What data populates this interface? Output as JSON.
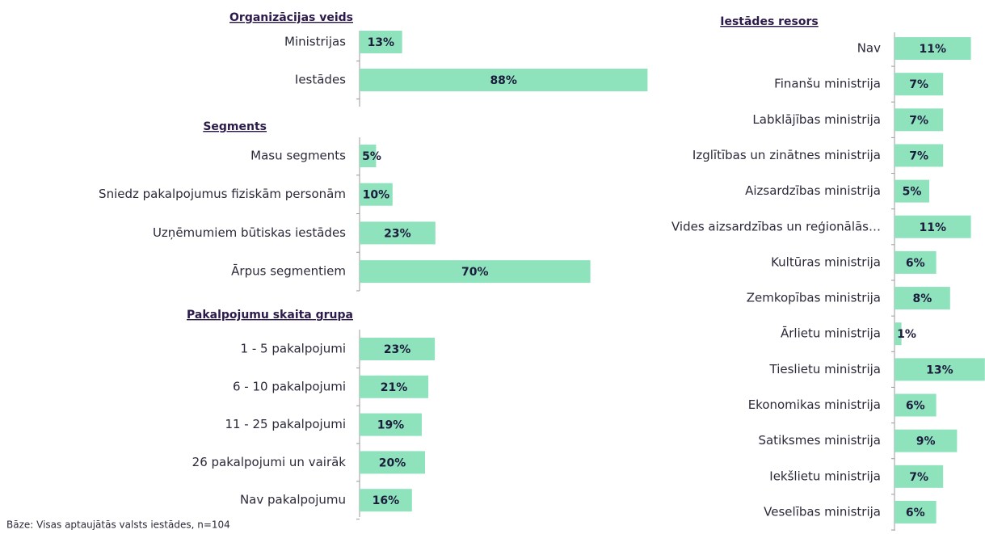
{
  "chart_data": [
    {
      "type": "bar",
      "orientation": "horizontal",
      "title": "Organizācijas veids",
      "color": "#8ee3bd",
      "categories": [
        "Ministrijas",
        "Iestādes"
      ],
      "values": [
        13,
        88
      ],
      "value_labels": [
        "13%",
        "88%"
      ]
    },
    {
      "type": "bar",
      "orientation": "horizontal",
      "title": "Segments",
      "color": "#8ee3bd",
      "categories": [
        "Masu segments",
        "Sniedz pakalpojumus fiziskām personām",
        "Uzņēmumiem būtiskas iestādes",
        "Ārpus segmentiem"
      ],
      "values": [
        5,
        10,
        23,
        70
      ],
      "value_labels": [
        "5%",
        "10%",
        "23%",
        "70%"
      ]
    },
    {
      "type": "bar",
      "orientation": "horizontal",
      "title": "Pakalpojumu skaita grupa",
      "color": "#8ee3bd",
      "categories": [
        "1 - 5 pakalpojumi",
        "6 - 10 pakalpojumi",
        "11 - 25 pakalpojumi",
        "26 pakalpojumi un vairāk",
        "Nav pakalpojumu"
      ],
      "values": [
        23,
        21,
        19,
        20,
        16
      ],
      "value_labels": [
        "23%",
        "21%",
        "19%",
        "20%",
        "16%"
      ]
    },
    {
      "type": "bar",
      "orientation": "horizontal",
      "title": "Iestādes resors",
      "color": "#8ee3bd",
      "categories": [
        "Nav",
        "Finanšu ministrija",
        "Labklājības ministrija",
        "Izglītības un zinātnes ministrija",
        "Aizsardzības ministrija",
        "Vides aizsardzības un reģionālās…",
        "Kultūras ministrija",
        "Zemkopības ministrija",
        "Ārlietu ministrija",
        "Tieslietu ministrija",
        "Ekonomikas ministrija",
        "Satiksmes ministrija",
        "Iekšlietu ministrija",
        "Veselības ministrija"
      ],
      "values": [
        11,
        7,
        7,
        7,
        5,
        11,
        6,
        8,
        1,
        13,
        6,
        9,
        7,
        6
      ],
      "value_labels": [
        "11%",
        "7%",
        "7%",
        "7%",
        "5%",
        "11%",
        "6%",
        "8%",
        "1%",
        "13%",
        "6%",
        "9%",
        "7%",
        "6%"
      ]
    }
  ],
  "note": "Bāze: Visas aptaujātās valsts iestādes, n=104"
}
